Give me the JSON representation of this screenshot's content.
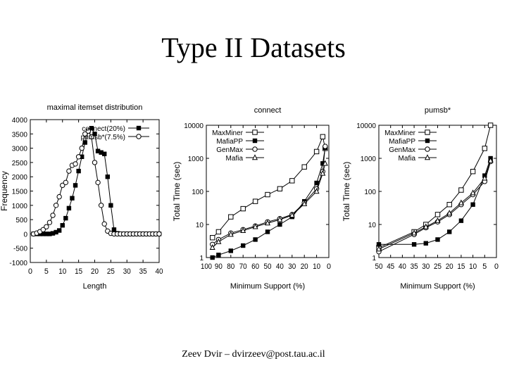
{
  "slide": {
    "title": "Type II Datasets",
    "footer": "Zeev Dvir – dvirzeev@post.tau.ac.il"
  },
  "chart_data": [
    {
      "type": "line",
      "title": "maximal itemset distribution",
      "xlabel": "Length",
      "ylabel": "Frequency",
      "xlim": [
        0,
        40
      ],
      "ylim": [
        -1000,
        4000
      ],
      "xticks": [
        "0",
        "5",
        "10",
        "15",
        "20",
        "25",
        "30",
        "35",
        "40"
      ],
      "yticks": [
        "4000",
        "3500",
        "3000",
        "2500",
        "2000",
        "1500",
        "1000",
        "500",
        "0",
        "-500",
        "-1000"
      ],
      "legend": "top-right",
      "series": [
        {
          "name": "connect(20%)",
          "marker": "filled-square",
          "x": [
            1,
            2,
            3,
            4,
            5,
            6,
            7,
            8,
            9,
            10,
            11,
            12,
            13,
            14,
            15,
            16,
            17,
            18,
            19,
            20,
            21,
            22,
            23,
            24,
            25,
            26,
            27,
            28,
            29,
            30,
            31,
            32,
            33,
            34,
            35,
            36,
            37,
            38,
            39,
            40
          ],
          "y": [
            0,
            0,
            0,
            0,
            0,
            0,
            20,
            60,
            120,
            300,
            550,
            900,
            1250,
            1700,
            2200,
            2700,
            3200,
            3600,
            3700,
            3500,
            2900,
            2850,
            2800,
            2000,
            1000,
            150,
            20,
            0,
            0,
            0,
            0,
            0,
            0,
            0,
            0,
            0,
            0,
            0,
            0,
            0
          ]
        },
        {
          "name": "pumsb*(7.5%)",
          "marker": "open-circle",
          "x": [
            1,
            2,
            3,
            4,
            5,
            6,
            7,
            8,
            9,
            10,
            11,
            12,
            13,
            14,
            15,
            16,
            17,
            18,
            19,
            20,
            21,
            22,
            23,
            24,
            25,
            26,
            27,
            28,
            29,
            30,
            31,
            32,
            33,
            34,
            35,
            36,
            37,
            38,
            39,
            40
          ],
          "y": [
            0,
            30,
            80,
            150,
            250,
            400,
            650,
            1000,
            1300,
            1700,
            1800,
            2200,
            2400,
            2450,
            2700,
            3000,
            3500,
            3600,
            3400,
            2500,
            1800,
            1000,
            350,
            100,
            20,
            0,
            0,
            0,
            0,
            0,
            0,
            0,
            0,
            0,
            0,
            0,
            0,
            0,
            0,
            0
          ]
        }
      ]
    },
    {
      "type": "line",
      "title": "connect",
      "xlabel": "Minimum Support (%)",
      "ylabel": "Total Time (sec)",
      "xlim": [
        100,
        0
      ],
      "ylim": [
        1,
        10000
      ],
      "yscale": "log",
      "xticks": [
        "100",
        "90",
        "80",
        "70",
        "60",
        "50",
        "40",
        "30",
        "20",
        "10",
        "0"
      ],
      "yticks": [
        "10000",
        "1000",
        "100",
        "10",
        "1"
      ],
      "legend": "top-left",
      "series": [
        {
          "name": "MaxMiner",
          "marker": "open-square",
          "x": [
            95,
            90,
            80,
            70,
            60,
            50,
            40,
            30,
            20,
            10,
            5,
            3
          ],
          "y": [
            4,
            6,
            17,
            30,
            50,
            80,
            120,
            210,
            550,
            1600,
            4500,
            2000
          ]
        },
        {
          "name": "MafiaPP",
          "marker": "filled-square",
          "x": [
            95,
            90,
            80,
            70,
            60,
            50,
            40,
            30,
            20,
            10,
            5,
            3
          ],
          "y": [
            1,
            1.2,
            1.6,
            2.3,
            3.5,
            6,
            10,
            17,
            50,
            180,
            700,
            2100
          ]
        },
        {
          "name": "GenMax",
          "marker": "open-circle",
          "x": [
            95,
            90,
            80,
            70,
            60,
            50,
            40,
            30,
            20,
            10,
            5,
            3
          ],
          "y": [
            2.5,
            3.5,
            5.5,
            7,
            9,
            12,
            15,
            20,
            45,
            120,
            400,
            2300
          ]
        },
        {
          "name": "Mafia",
          "marker": "open-triangle",
          "x": [
            95,
            90,
            80,
            70,
            60,
            50,
            40,
            30,
            20,
            10,
            5,
            3
          ],
          "y": [
            2,
            3,
            5,
            6.5,
            8.5,
            11,
            14,
            19,
            42,
            100,
            350,
            700
          ]
        }
      ]
    },
    {
      "type": "line",
      "title": "pumsb*",
      "xlabel": "Minimum Support (%)",
      "ylabel": "Total Time (sec)",
      "xlim": [
        50,
        0
      ],
      "ylim": [
        1,
        10000
      ],
      "yscale": "log",
      "xticks": [
        "50",
        "45",
        "40",
        "35",
        "30",
        "25",
        "20",
        "15",
        "10",
        "5",
        "0"
      ],
      "yticks": [
        "10000",
        "1000",
        "100",
        "10",
        "1"
      ],
      "legend": "top-left",
      "series": [
        {
          "name": "MaxMiner",
          "marker": "open-square",
          "x": [
            50,
            35,
            30,
            25,
            20,
            15,
            10,
            5,
            2.5
          ],
          "y": [
            2,
            6,
            10,
            20,
            40,
            110,
            400,
            2000,
            10000
          ]
        },
        {
          "name": "MafiaPP",
          "marker": "filled-square",
          "x": [
            50,
            35,
            30,
            25,
            20,
            15,
            10,
            5,
            2.5
          ],
          "y": [
            2.5,
            2.5,
            2.7,
            3.5,
            6,
            13,
            40,
            300,
            1000
          ]
        },
        {
          "name": "GenMax",
          "marker": "open-circle",
          "x": [
            50,
            35,
            30,
            25,
            20,
            15,
            10,
            5,
            2.5
          ],
          "y": [
            1.5,
            5,
            8,
            12,
            20,
            40,
            80,
            200,
            800
          ]
        },
        {
          "name": "Mafia",
          "marker": "open-triangle",
          "x": [
            50,
            35,
            30,
            25,
            20,
            15,
            10,
            5,
            2.5
          ],
          "y": [
            1.8,
            5.5,
            8.5,
            13,
            22,
            45,
            90,
            250,
            850
          ]
        }
      ]
    }
  ]
}
